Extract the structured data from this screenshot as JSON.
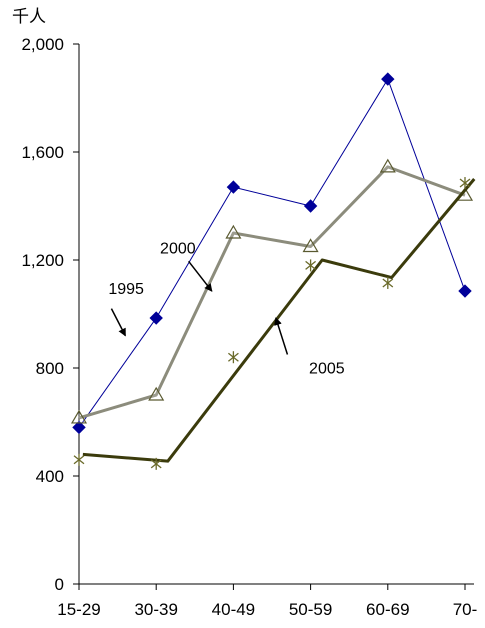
{
  "chart_data": {
    "type": "line",
    "y_unit": "千人",
    "categories": [
      "15-29",
      "30-39",
      "40-49",
      "50-59",
      "60-69",
      "70-"
    ],
    "ylim": [
      0,
      2000
    ],
    "yticks": [
      0,
      400,
      800,
      1200,
      1600,
      2000
    ],
    "ytick_labels": [
      "0",
      "400",
      "800",
      "1,200",
      "1,600",
      "2,000"
    ],
    "grid": false,
    "legend": "none",
    "series": [
      {
        "name": "1995",
        "color": "#000099",
        "stroke_width": 1,
        "marker": "diamond",
        "marker_color": "#000099",
        "points": [
          [
            0,
            580
          ],
          [
            1,
            985
          ],
          [
            2,
            1470
          ],
          [
            3,
            1400
          ],
          [
            4,
            1870
          ],
          [
            5,
            1085
          ]
        ]
      },
      {
        "name": "2000",
        "color": "#8c8c7c",
        "stroke_width": 3,
        "marker": "triangle",
        "marker_color": "#5a5a30",
        "points": [
          [
            0,
            615
          ],
          [
            1,
            700
          ],
          [
            2,
            1300
          ],
          [
            3,
            1250
          ],
          [
            4,
            1545
          ],
          [
            5,
            1440
          ]
        ]
      },
      {
        "name": "2005",
        "color": "#3b3b0c",
        "stroke_width": 3,
        "marker": "asterisk",
        "marker_color": "#6a6a2a",
        "line_points": [
          [
            0.05,
            480
          ],
          [
            1.15,
            455
          ],
          [
            3.15,
            1200
          ],
          [
            4.05,
            1135
          ],
          [
            5.12,
            1500
          ]
        ],
        "markers": [
          [
            0,
            460
          ],
          [
            1,
            445
          ],
          [
            2,
            840
          ],
          [
            3,
            1180
          ],
          [
            4,
            1115
          ],
          [
            5,
            1485
          ]
        ]
      }
    ],
    "annotations": [
      {
        "text": "1995",
        "series": "1995",
        "label_at": [
          0.38,
          1075
        ],
        "arrow_from": [
          0.42,
          1020
        ],
        "arrow_to": [
          0.6,
          920
        ]
      },
      {
        "text": "2000",
        "series": "2000",
        "label_at": [
          1.05,
          1225
        ],
        "arrow_from": [
          1.42,
          1195
        ],
        "arrow_to": [
          1.72,
          1085
        ]
      },
      {
        "text": "2005",
        "series": "2005",
        "label_at": [
          2.98,
          780
        ],
        "arrow_from": [
          2.7,
          850
        ],
        "arrow_to": [
          2.55,
          985
        ]
      }
    ]
  }
}
